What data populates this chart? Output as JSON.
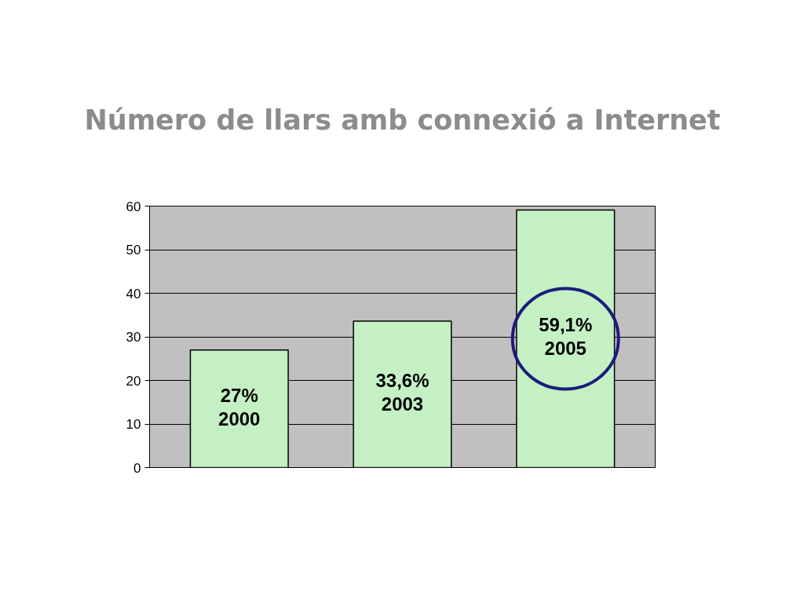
{
  "chart_data": {
    "type": "bar",
    "title": "Número de llars amb connexió a Internet",
    "categories": [
      "2000",
      "2003",
      "2005"
    ],
    "values": [
      27,
      33.6,
      59.1
    ],
    "color": "#c4f0c4",
    "value_labels": [
      "27%",
      "33,6%",
      "59,1%"
    ],
    "ylim": [
      0,
      60
    ],
    "yticks": [
      0,
      10,
      20,
      30,
      40,
      50,
      60
    ],
    "grid": "y",
    "tick_labels": "y"
  }
}
